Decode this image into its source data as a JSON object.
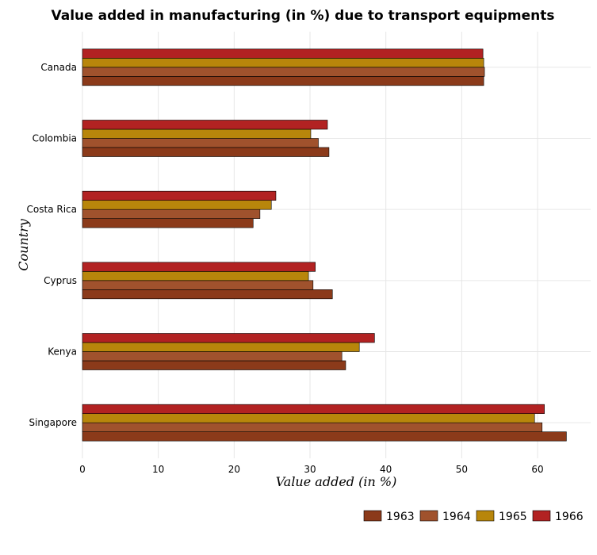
{
  "chart_data": {
    "type": "bar",
    "orientation": "horizontal",
    "title": "Value added in manufacturing (in %) due to transport equipments",
    "xlabel": "Value added (in %)",
    "ylabel": "Country",
    "categories": [
      "Canada",
      "Colombia",
      "Costa Rica",
      "Cyprus",
      "Kenya",
      "Singapore"
    ],
    "series": [
      {
        "name": "1963",
        "color": "#8b3a1a",
        "values": [
          52.9,
          32.5,
          22.5,
          32.95,
          34.7,
          63.8
        ]
      },
      {
        "name": "1964",
        "color": "#a0522d",
        "values": [
          53.0,
          31.1,
          23.4,
          30.4,
          34.2,
          60.6
        ]
      },
      {
        "name": "1965",
        "color": "#b8860b",
        "values": [
          52.9,
          30.1,
          24.9,
          29.8,
          36.5,
          59.6
        ]
      },
      {
        "name": "1966",
        "color": "#b22222",
        "values": [
          52.8,
          32.3,
          25.5,
          30.7,
          38.5,
          60.9
        ]
      }
    ],
    "xlim": [
      0,
      67
    ],
    "xticks": [
      0,
      10,
      20,
      30,
      40,
      50,
      60
    ],
    "grid": true,
    "legend_position": "bottom-right"
  }
}
